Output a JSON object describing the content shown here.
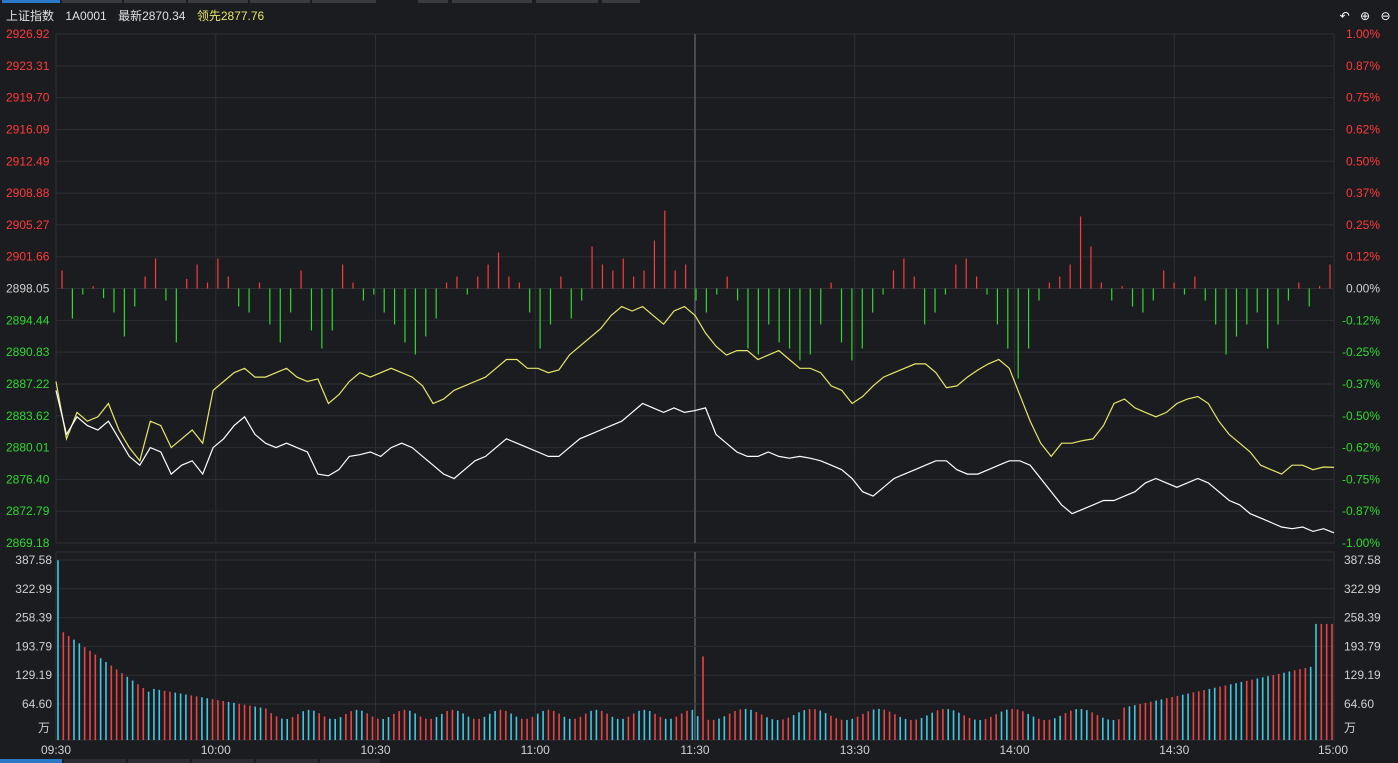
{
  "header": {
    "name": "上证指数",
    "code": "1A0001",
    "latest": "最新2870.34",
    "leading": "领先2877.76"
  },
  "controls": {
    "back_icon": "↶",
    "zoom_in_icon": "⊕",
    "zoom_out_icon": "⊖"
  },
  "colors": {
    "up": "#ff3a3a",
    "down": "#2fd82f",
    "price_line": "#ffffff",
    "leading_line": "#e6e668",
    "vol_up": "#e84444",
    "vol_down": "#3fc8e0",
    "grid": "#2e2f34",
    "axis_text": "#d0d0d0"
  },
  "chart_data": {
    "type": "line",
    "price_axis": {
      "left_ticks": [
        "2926.92",
        "2923.31",
        "2919.70",
        "2916.09",
        "2912.49",
        "2908.88",
        "2905.27",
        "2901.66",
        "2898.05",
        "2894.44",
        "2890.83",
        "2887.22",
        "2883.62",
        "2880.01",
        "2876.40",
        "2872.79",
        "2869.18"
      ],
      "right_ticks": [
        "1.00%",
        "0.87%",
        "0.75%",
        "0.62%",
        "0.50%",
        "0.37%",
        "0.25%",
        "0.12%",
        "0.00%",
        "-0.12%",
        "-0.25%",
        "-0.37%",
        "-0.50%",
        "-0.62%",
        "-0.75%",
        "-0.87%",
        "-1.00%"
      ],
      "ylim": [
        2869.18,
        2926.92
      ],
      "base": 2898.05
    },
    "volume_axis": {
      "ticks": [
        "387.58",
        "322.99",
        "258.39",
        "193.79",
        "129.19",
        "64.60"
      ],
      "unit": "万",
      "ylim": [
        0,
        387.58
      ]
    },
    "x_ticks": [
      "09:30",
      "10:00",
      "10:30",
      "11:00",
      "11:30",
      "13:30",
      "14:00",
      "14:30",
      "15:00"
    ],
    "price_series": [
      2886.5,
      2881.5,
      2883.5,
      2882.5,
      2882.0,
      2883.0,
      2881.0,
      2879.0,
      2878.0,
      2880.0,
      2879.5,
      2877.0,
      2878.0,
      2878.5,
      2877.0,
      2880.0,
      2881.0,
      2882.5,
      2883.5,
      2881.5,
      2880.5,
      2880.0,
      2880.5,
      2880.0,
      2879.5,
      2877.0,
      2876.8,
      2877.5,
      2879.0,
      2879.2,
      2879.5,
      2879.0,
      2880.0,
      2880.5,
      2880.0,
      2879.0,
      2878.0,
      2877.0,
      2876.5,
      2877.5,
      2878.5,
      2879.0,
      2880.0,
      2881.0,
      2880.5,
      2880.0,
      2879.5,
      2879.0,
      2879.0,
      2880.0,
      2881.0,
      2881.5,
      2882.0,
      2882.5,
      2883.0,
      2884.0,
      2885.0,
      2884.5,
      2884.0,
      2884.5,
      2884.0,
      2884.2,
      2884.5,
      2881.5,
      2880.5,
      2879.5,
      2879.0,
      2879.0,
      2879.5,
      2879.0,
      2878.8,
      2879.0,
      2878.8,
      2878.5,
      2878.0,
      2877.5,
      2876.5,
      2875.0,
      2874.5,
      2875.5,
      2876.5,
      2877.0,
      2877.5,
      2878.0,
      2878.5,
      2878.5,
      2877.5,
      2877.0,
      2877.0,
      2877.5,
      2878.0,
      2878.5,
      2878.5,
      2878.0,
      2876.5,
      2875.0,
      2873.5,
      2872.5,
      2873.0,
      2873.5,
      2874.0,
      2874.0,
      2874.5,
      2875.0,
      2876.0,
      2876.5,
      2876.0,
      2875.5,
      2876.0,
      2876.5,
      2876.0,
      2875.0,
      2874.0,
      2873.5,
      2872.5,
      2872.0,
      2871.5,
      2871.0,
      2870.8,
      2871.0,
      2870.5,
      2870.8,
      2870.34
    ],
    "leading_series": [
      2887.5,
      2881.0,
      2884.0,
      2883.0,
      2883.5,
      2885.0,
      2882.0,
      2880.0,
      2878.5,
      2883.0,
      2882.5,
      2880.0,
      2881.0,
      2882.0,
      2880.5,
      2886.5,
      2887.5,
      2888.5,
      2889.0,
      2888.0,
      2888.0,
      2888.5,
      2889.0,
      2888.0,
      2887.5,
      2887.8,
      2885.0,
      2886.0,
      2887.5,
      2888.5,
      2888.0,
      2888.5,
      2889.0,
      2888.5,
      2888.0,
      2887.0,
      2885.0,
      2885.5,
      2886.5,
      2887.0,
      2887.5,
      2888.0,
      2889.0,
      2890.0,
      2890.0,
      2889.0,
      2889.0,
      2888.5,
      2888.8,
      2890.5,
      2891.5,
      2892.5,
      2893.5,
      2895.0,
      2896.0,
      2895.5,
      2896.0,
      2895.0,
      2894.0,
      2895.5,
      2896.0,
      2895.0,
      2893.0,
      2891.5,
      2890.5,
      2891.0,
      2891.0,
      2890.0,
      2890.5,
      2891.0,
      2890.0,
      2889.0,
      2889.0,
      2888.5,
      2887.0,
      2886.5,
      2885.0,
      2885.8,
      2887.0,
      2888.0,
      2888.5,
      2889.0,
      2889.5,
      2889.5,
      2888.5,
      2886.8,
      2887.0,
      2888.0,
      2888.8,
      2889.5,
      2890.0,
      2889.0,
      2886.0,
      2883.0,
      2880.5,
      2879.0,
      2880.5,
      2880.5,
      2880.8,
      2881.0,
      2882.5,
      2885.0,
      2885.5,
      2884.5,
      2884.0,
      2883.5,
      2884.0,
      2885.0,
      2885.5,
      2885.8,
      2885.0,
      2883.0,
      2881.5,
      2880.5,
      2879.5,
      2878.0,
      2877.5,
      2877.0,
      2878.0,
      2878.0,
      2877.5,
      2877.8,
      2877.76
    ],
    "diff_bars": [
      0.15,
      -0.25,
      -0.05,
      0.02,
      -0.08,
      -0.2,
      -0.4,
      -0.15,
      0.1,
      0.25,
      -0.1,
      -0.45,
      0.08,
      0.2,
      0.05,
      0.25,
      0.1,
      -0.15,
      -0.2,
      0.05,
      -0.3,
      -0.45,
      -0.2,
      0.15,
      -0.35,
      -0.5,
      -0.35,
      0.2,
      0.05,
      -0.1,
      -0.05,
      -0.2,
      -0.3,
      -0.45,
      -0.55,
      -0.4,
      -0.25,
      0.05,
      0.1,
      -0.05,
      0.1,
      0.2,
      0.3,
      0.1,
      0.05,
      -0.2,
      -0.5,
      -0.3,
      0.1,
      -0.25,
      -0.1,
      0.35,
      0.2,
      0.15,
      0.25,
      0.1,
      0.15,
      0.4,
      0.65,
      0.15,
      0.2,
      -0.1,
      -0.2,
      -0.05,
      0.1,
      -0.1,
      -0.5,
      -0.55,
      -0.3,
      -0.45,
      -0.5,
      -0.6,
      -0.55,
      -0.3,
      0.05,
      -0.45,
      -0.6,
      -0.5,
      -0.2,
      -0.05,
      0.15,
      0.25,
      0.1,
      -0.3,
      -0.2,
      -0.05,
      0.2,
      0.25,
      0.1,
      -0.05,
      -0.3,
      -0.5,
      -0.75,
      -0.5,
      -0.1,
      0.05,
      0.1,
      0.2,
      0.6,
      0.35,
      0.05,
      -0.1,
      0.02,
      -0.15,
      -0.2,
      -0.1,
      0.15,
      0.05,
      -0.05,
      0.1,
      -0.1,
      -0.3,
      -0.55,
      -0.4,
      -0.3,
      -0.2,
      -0.5,
      -0.3,
      -0.1,
      0.05,
      -0.15,
      0.02,
      0.2
    ]
  }
}
